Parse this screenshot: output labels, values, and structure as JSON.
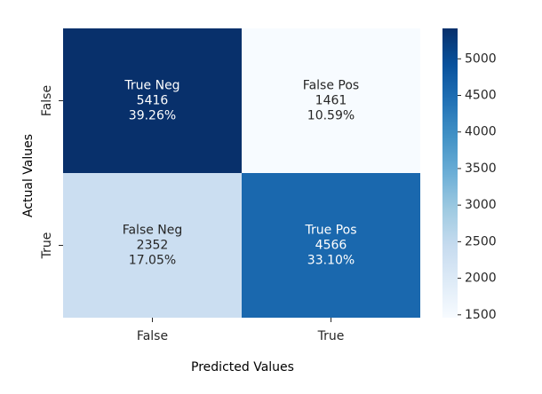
{
  "chart_data": {
    "type": "heatmap",
    "title": "",
    "xlabel": "Predicted Values",
    "ylabel": "Actual Values",
    "x_categories": [
      "False",
      "True"
    ],
    "y_categories": [
      "False",
      "True"
    ],
    "cells": [
      [
        {
          "label": "True Neg",
          "value": 5416,
          "display_value": "5416",
          "percent": "39.26%"
        },
        {
          "label": "False Pos",
          "value": 1461,
          "display_value": "1461",
          "percent": "10.59%"
        }
      ],
      [
        {
          "label": "False Neg",
          "value": 2352,
          "display_value": "2352",
          "percent": "17.05%"
        },
        {
          "label": "True Pos",
          "value": 4566,
          "display_value": "4566",
          "percent": "33.10%"
        }
      ]
    ],
    "colorbar": {
      "colormap": "Blues",
      "range": [
        1461,
        5416
      ],
      "ticks": [
        1500,
        2000,
        2500,
        3000,
        3500,
        4000,
        4500,
        5000
      ],
      "tick_labels": [
        "1500",
        "2000",
        "2500",
        "3000",
        "3500",
        "4000",
        "4500",
        "5000"
      ]
    },
    "colors": {
      "text_light": "#ffffff",
      "text_dark": "#262626"
    }
  }
}
